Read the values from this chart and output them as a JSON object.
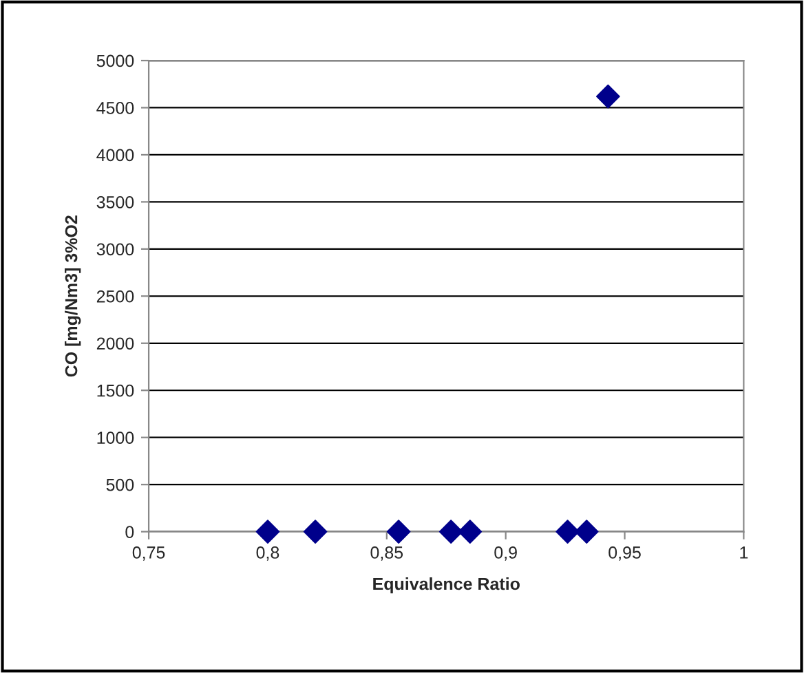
{
  "chart_data": {
    "type": "scatter",
    "xlabel": "Equivalence Ratio",
    "ylabel": "CO [mg/Nm3] 3%O2",
    "x": [
      0.8,
      0.82,
      0.855,
      0.877,
      0.885,
      0.926,
      0.934,
      0.943
    ],
    "series": [
      {
        "color": "#00008b",
        "values": [
          0,
          0,
          0,
          0,
          0,
          0,
          0,
          4620
        ]
      }
    ],
    "marker": "diamond",
    "grid": "y",
    "legend": false,
    "xlim": [
      0.75,
      1
    ],
    "xticks": [
      {
        "value": 0.75,
        "label": "0,75"
      },
      {
        "value": 0.8,
        "label": "0,8"
      },
      {
        "value": 0.85,
        "label": "0,85"
      },
      {
        "value": 0.9,
        "label": "0,9"
      },
      {
        "value": 0.95,
        "label": "0,95"
      },
      1
    ],
    "ylim": [
      0,
      5000
    ],
    "yticks": [
      0,
      500,
      1000,
      1500,
      2000,
      2500,
      3000,
      3500,
      4000,
      4500,
      5000
    ]
  }
}
